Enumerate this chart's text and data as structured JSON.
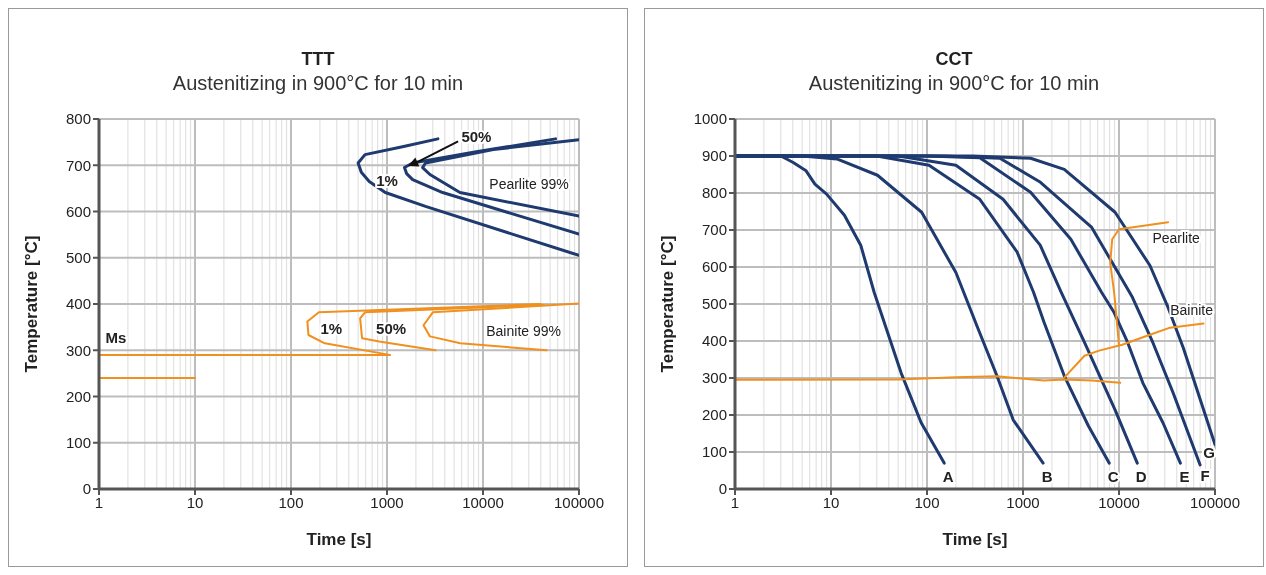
{
  "chart_data": [
    {
      "type": "line",
      "title": "TTT",
      "subtitle": "Austenitizing in 900°C for 10 min",
      "xlabel": "Time [s]",
      "ylabel": "Temperature [°C]",
      "log": "x",
      "grid": true,
      "marker": "none",
      "line_style": "solid",
      "xlim": [
        1,
        100000
      ],
      "xticks": [
        1,
        10,
        100,
        1000,
        10000,
        100000
      ],
      "ylim": [
        0,
        800
      ],
      "yticks": [
        0,
        100,
        200,
        300,
        400,
        500,
        600,
        700,
        800
      ],
      "series": [
        {
          "name": "1%",
          "color": "#1f3a6e",
          "x": [
            3390,
            1450,
            590,
            500,
            540,
            653,
            960,
            2520,
            100000
          ],
          "values": [
            757,
            740,
            723,
            705,
            685,
            665,
            641,
            611,
            505
          ]
        },
        {
          "name": "50%",
          "color": "#1f3a6e",
          "x": [
            57000,
            8500,
            1850,
            1520,
            1600,
            1850,
            3800,
            100000
          ],
          "values": [
            757,
            729,
            705,
            695,
            682,
            669,
            641,
            551
          ]
        },
        {
          "name": "Pearlite 99%",
          "color": "#1f3a6e",
          "x": [
            100000,
            12800,
            2520,
            2350,
            2800,
            5750,
            100000
          ],
          "values": [
            755,
            734,
            705,
            695,
            680,
            641,
            590
          ]
        },
        {
          "name": "1%",
          "color": "#f0901e",
          "x": [
            40000,
            195,
            148,
            152,
            225,
            1070
          ],
          "values": [
            400,
            382,
            362,
            333,
            315,
            290
          ]
        },
        {
          "name": "50%",
          "color": "#f0901e",
          "x": [
            43000,
            590,
            525,
            550,
            830,
            3200
          ],
          "values": [
            398,
            382,
            369,
            326,
            319,
            300
          ]
        },
        {
          "name": "Bainite 99%",
          "color": "#f0901e",
          "x": [
            100000,
            3000,
            2400,
            2800,
            5800,
            46000
          ],
          "values": [
            401,
            382,
            354,
            330,
            315,
            300
          ]
        },
        {
          "name": "Ms",
          "color": "#f0901e",
          "x": [
            1,
            1070
          ],
          "values": [
            290,
            290
          ]
        },
        {
          "color": "#f0901e",
          "x": [
            1,
            10
          ],
          "values": [
            240,
            240
          ]
        }
      ]
    },
    {
      "type": "line",
      "title": "CCT",
      "subtitle": "Austenitizing in 900°C for 10 min",
      "xlabel": "Time [s]",
      "ylabel": "Temperature [°C]",
      "log": "x",
      "grid": true,
      "marker": "none",
      "line_style": "solid",
      "xlim": [
        1,
        100000
      ],
      "xticks": [
        1,
        10,
        100,
        1000,
        10000,
        100000
      ],
      "ylim": [
        0,
        1000
      ],
      "yticks": [
        0,
        100,
        200,
        300,
        400,
        500,
        600,
        700,
        800,
        900,
        1000
      ],
      "series": [
        {
          "name": "A",
          "color": "#1f3a6e",
          "x": [
            1,
            3,
            4,
            5.5,
            6.8,
            9,
            13.8,
            20.4,
            28.2,
            53.7,
            87,
            151
          ],
          "values": [
            900,
            900,
            883,
            860,
            824,
            797,
            740,
            659,
            531,
            314,
            179,
            70
          ]
        },
        {
          "name": "B",
          "color": "#1f3a6e",
          "x": [
            1,
            5,
            11.5,
            30.5,
            88,
            200,
            330,
            535,
            790,
            1620
          ],
          "values": [
            900,
            900,
            892,
            848,
            748,
            585,
            442,
            306,
            187,
            70
          ]
        },
        {
          "name": "C",
          "color": "#1f3a6e",
          "x": [
            1,
            30,
            105,
            355,
            870,
            1290,
            1660,
            2690,
            4790,
            7900
          ],
          "values": [
            900,
            900,
            875,
            783,
            640,
            531,
            450,
            306,
            171,
            70
          ]
        },
        {
          "name": "D",
          "color": "#1f3a6e",
          "x": [
            1,
            50,
            200,
            620,
            1510,
            2510,
            4370,
            9100,
            15500
          ],
          "values": [
            900,
            900,
            875,
            783,
            659,
            531,
            396,
            214,
            70
          ]
        },
        {
          "name": "E",
          "color": "#1f3a6e",
          "x": [
            1,
            100,
            355,
            1200,
            3150,
            6600,
            8900,
            12300,
            17700,
            28700,
            43600
          ],
          "values": [
            900,
            900,
            895,
            802,
            675,
            531,
            477,
            396,
            287,
            179,
            70
          ]
        },
        {
          "name": "F",
          "color": "#1f3a6e",
          "x": [
            1,
            150,
            575,
            1520,
            5200,
            13800,
            22500,
            36600,
            70000
          ],
          "values": [
            900,
            900,
            894,
            829,
            707,
            518,
            396,
            260,
            65
          ]
        },
        {
          "name": "G",
          "color": "#1f3a6e",
          "x": [
            1,
            300,
            1200,
            2690,
            9100,
            21000,
            32500,
            46700,
            100000
          ],
          "values": [
            900,
            900,
            894,
            864,
            748,
            604,
            490,
            382,
            120
          ]
        },
        {
          "name": "Pearlite",
          "color": "#f0901e",
          "x": [
            32500,
            10000,
            8500,
            8100,
            8900,
            10000
          ],
          "values": [
            721,
            702,
            675,
            612,
            531,
            388
          ]
        },
        {
          "name": "Bainite",
          "color": "#f0901e",
          "x": [
            2690,
            4370,
            6200,
            10800,
            21000,
            34000,
            76000
          ],
          "values": [
            301,
            360,
            374,
            390,
            417,
            436,
            447
          ]
        },
        {
          "color": "#f0901e",
          "x": [
            1,
            50,
            200,
            535,
            1650,
            2690,
            5200,
            10300
          ],
          "values": [
            295,
            296,
            302,
            305,
            293,
            296,
            293,
            287
          ]
        }
      ]
    }
  ]
}
